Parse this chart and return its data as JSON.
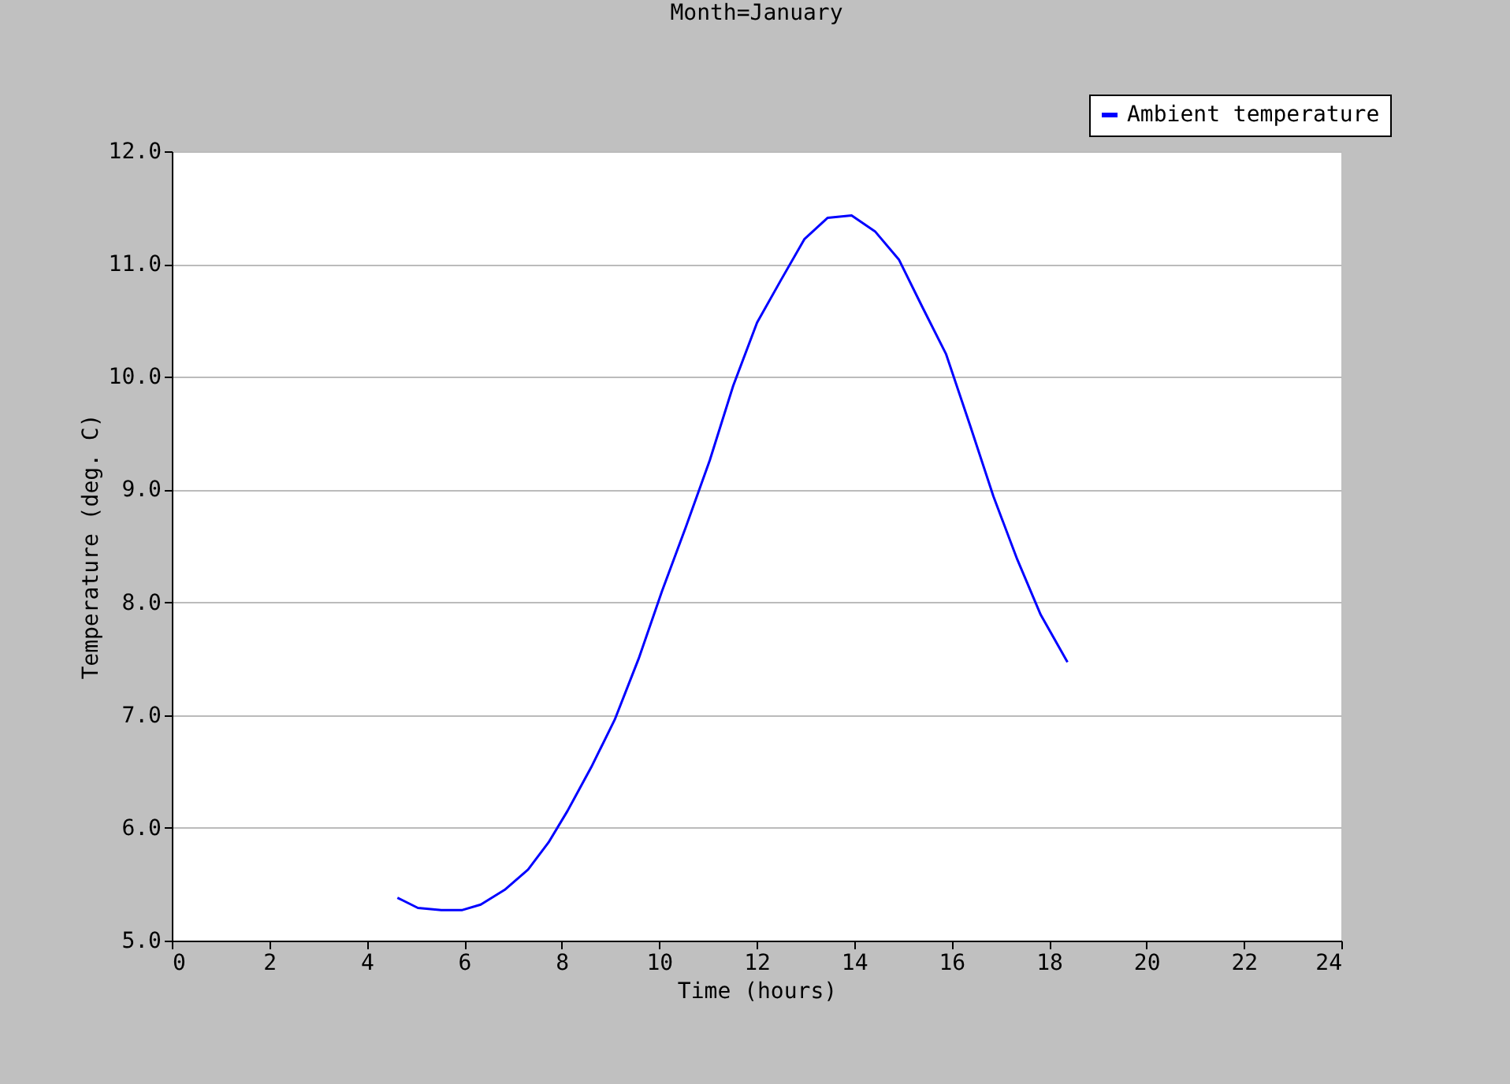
{
  "chart_data": {
    "type": "line",
    "title": "Month=January",
    "xlabel": "Time (hours)",
    "ylabel": "Temperature (deg. C)",
    "xlim": [
      0,
      24
    ],
    "xticks": [
      0,
      2,
      4,
      6,
      8,
      10,
      12,
      14,
      16,
      18,
      20,
      22,
      24
    ],
    "ylim": [
      5,
      12
    ],
    "yticks": [
      {
        "value": 5,
        "label": "5.0"
      },
      {
        "value": 6,
        "label": "6.0"
      },
      {
        "value": 7,
        "label": "7.0"
      },
      {
        "value": 8,
        "label": "8.0"
      },
      {
        "value": 9,
        "label": "9.0"
      },
      {
        "value": 10,
        "label": "10.0"
      },
      {
        "value": 11,
        "label": "11.0"
      },
      {
        "value": 12,
        "label": "12.0"
      }
    ],
    "grid": "y",
    "legend": "top right",
    "marker": "none",
    "line_style": "solid",
    "x": [
      4.63,
      5.05,
      5.53,
      5.95,
      6.34,
      6.83,
      7.31,
      7.73,
      8.12,
      8.61,
      9.09,
      9.58,
      10.06,
      10.55,
      11.04,
      11.52,
      12.01,
      12.49,
      12.98,
      13.46,
      13.95,
      14.43,
      14.92,
      15.4,
      15.89,
      16.38,
      16.86,
      17.35,
      17.83,
      18.38
    ],
    "series": [
      {
        "name": "Ambient temperature",
        "color": "#0000ff",
        "values": [
          5.38,
          5.29,
          5.27,
          5.27,
          5.32,
          5.45,
          5.63,
          5.87,
          6.15,
          6.54,
          6.96,
          7.5,
          8.1,
          8.67,
          9.26,
          9.92,
          10.48,
          10.85,
          11.22,
          11.41,
          11.43,
          11.29,
          11.04,
          10.62,
          10.2,
          9.57,
          8.94,
          8.38,
          7.89,
          7.47
        ]
      }
    ]
  }
}
